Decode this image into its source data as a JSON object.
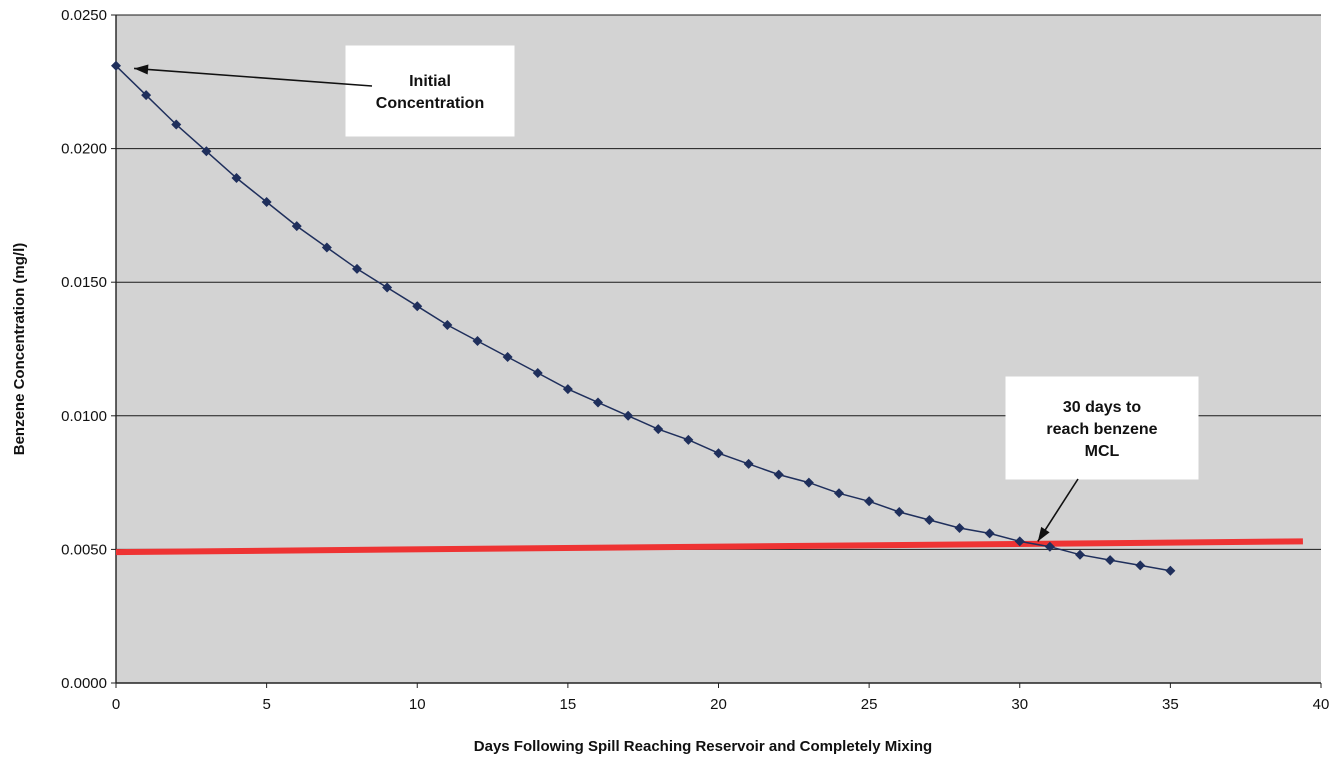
{
  "chart_data": {
    "type": "line",
    "title": "",
    "xlabel": "Days Following Spill Reaching Reservoir and Completely Mixing",
    "ylabel": "Benzene Concentration (mg/l)",
    "xlim": [
      0,
      40
    ],
    "ylim": [
      0,
      0.025
    ],
    "x_ticks": [
      "0",
      "5",
      "10",
      "15",
      "20",
      "25",
      "30",
      "35",
      "40"
    ],
    "y_ticks": [
      "0.0000",
      "0.0050",
      "0.0100",
      "0.0150",
      "0.0200",
      "0.0250"
    ],
    "grid": "horizontal",
    "plot_background": "#d3d3d3",
    "series": [
      {
        "marker": "diamond",
        "color": "#1f2f5c",
        "x": [
          0,
          1,
          2,
          3,
          4,
          5,
          6,
          7,
          8,
          9,
          10,
          11,
          12,
          13,
          14,
          15,
          16,
          17,
          18,
          19,
          20,
          21,
          22,
          23,
          24,
          25,
          26,
          27,
          28,
          29,
          30,
          31,
          32,
          33,
          34,
          35
        ],
        "values": [
          0.0231,
          0.022,
          0.0209,
          0.0199,
          0.0189,
          0.018,
          0.0171,
          0.0163,
          0.0155,
          0.0148,
          0.0141,
          0.0134,
          0.0128,
          0.0122,
          0.0116,
          0.011,
          0.0105,
          0.01,
          0.0095,
          0.0091,
          0.0086,
          0.0082,
          0.0078,
          0.0075,
          0.0071,
          0.0068,
          0.0064,
          0.0061,
          0.0058,
          0.0056,
          0.0053,
          0.0051,
          0.0048,
          0.0046,
          0.0044,
          0.0042
        ]
      }
    ],
    "reference_line": {
      "color": "#ee3333",
      "x": [
        0,
        39.4
      ],
      "values": [
        0.0049,
        0.0053
      ]
    },
    "annotations": [
      {
        "lines": [
          "Initial",
          "Concentration"
        ],
        "point_x": 0.6,
        "point_y": 0.023
      },
      {
        "lines": [
          "30 days to",
          "reach benzene",
          "MCL"
        ],
        "point_x": 30.6,
        "point_y": 0.0053
      }
    ]
  }
}
